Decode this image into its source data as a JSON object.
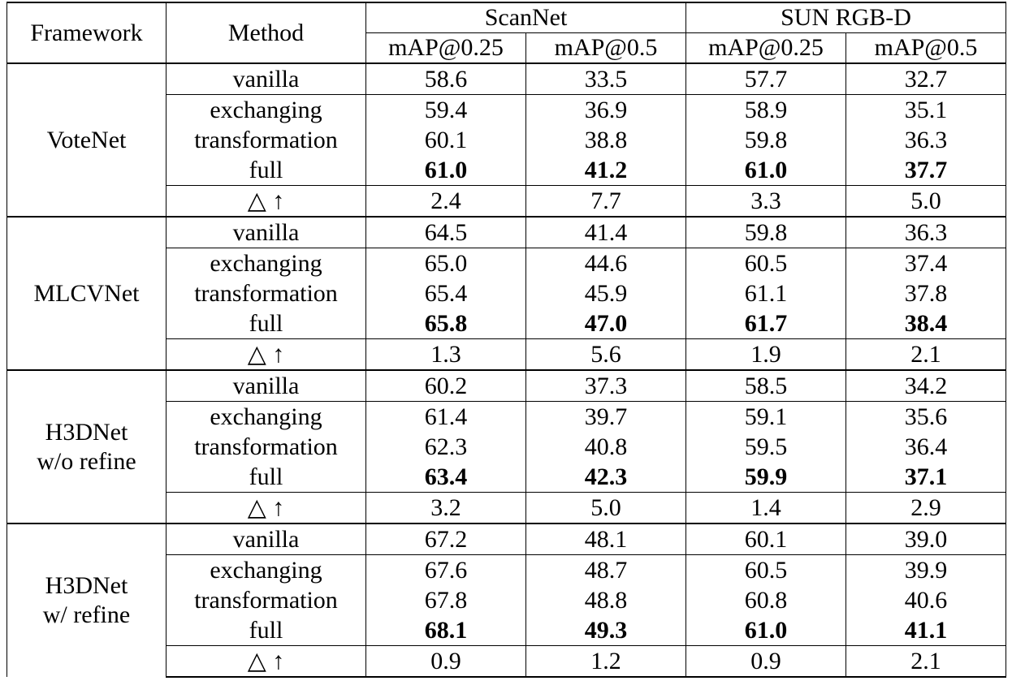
{
  "header": {
    "framework": "Framework",
    "method": "Method",
    "dataset1": "ScanNet",
    "dataset2": "SUN RGB-D",
    "metrics": [
      "mAP@0.25",
      "mAP@0.5",
      "mAP@0.25",
      "mAP@0.5"
    ]
  },
  "blocks": [
    {
      "framework_lines": [
        "VoteNet"
      ],
      "rows": [
        {
          "method": "vanilla",
          "values": [
            "58.6",
            "33.5",
            "57.7",
            "32.7"
          ]
        },
        {
          "method": "exchanging",
          "values": [
            "59.4",
            "36.9",
            "58.9",
            "35.1"
          ]
        },
        {
          "method": "transformation",
          "values": [
            "60.1",
            "38.8",
            "59.8",
            "36.3"
          ]
        },
        {
          "method": "full",
          "values": [
            "61.0",
            "41.2",
            "61.0",
            "37.7"
          ]
        },
        {
          "method": "△ ↑",
          "values": [
            "2.4",
            "7.7",
            "3.3",
            "5.0"
          ]
        }
      ]
    },
    {
      "framework_lines": [
        "MLCVNet"
      ],
      "rows": [
        {
          "method": "vanilla",
          "values": [
            "64.5",
            "41.4",
            "59.8",
            "36.3"
          ]
        },
        {
          "method": "exchanging",
          "values": [
            "65.0",
            "44.6",
            "60.5",
            "37.4"
          ]
        },
        {
          "method": "transformation",
          "values": [
            "65.4",
            "45.9",
            "61.1",
            "37.8"
          ]
        },
        {
          "method": "full",
          "values": [
            "65.8",
            "47.0",
            "61.7",
            "38.4"
          ]
        },
        {
          "method": "△ ↑",
          "values": [
            "1.3",
            "5.6",
            "1.9",
            "2.1"
          ]
        }
      ]
    },
    {
      "framework_lines": [
        "H3DNet",
        "w/o refine"
      ],
      "rows": [
        {
          "method": "vanilla",
          "values": [
            "60.2",
            "37.3",
            "58.5",
            "34.2"
          ]
        },
        {
          "method": "exchanging",
          "values": [
            "61.4",
            "39.7",
            "59.1",
            "35.6"
          ]
        },
        {
          "method": "transformation",
          "values": [
            "62.3",
            "40.8",
            "59.5",
            "36.4"
          ]
        },
        {
          "method": "full",
          "values": [
            "63.4",
            "42.3",
            "59.9",
            "37.1"
          ]
        },
        {
          "method": "△ ↑",
          "values": [
            "3.2",
            "5.0",
            "1.4",
            "2.9"
          ]
        }
      ]
    },
    {
      "framework_lines": [
        "H3DNet",
        "w/ refine"
      ],
      "rows": [
        {
          "method": "vanilla",
          "values": [
            "67.2",
            "48.1",
            "60.1",
            "39.0"
          ]
        },
        {
          "method": "exchanging",
          "values": [
            "67.6",
            "48.7",
            "60.5",
            "39.9"
          ]
        },
        {
          "method": "transformation",
          "values": [
            "67.8",
            "48.8",
            "60.8",
            "40.6"
          ]
        },
        {
          "method": "full",
          "values": [
            "68.1",
            "49.3",
            "61.0",
            "41.1"
          ]
        },
        {
          "method": "△ ↑",
          "values": [
            "0.9",
            "1.2",
            "0.9",
            "2.1"
          ]
        }
      ]
    }
  ]
}
